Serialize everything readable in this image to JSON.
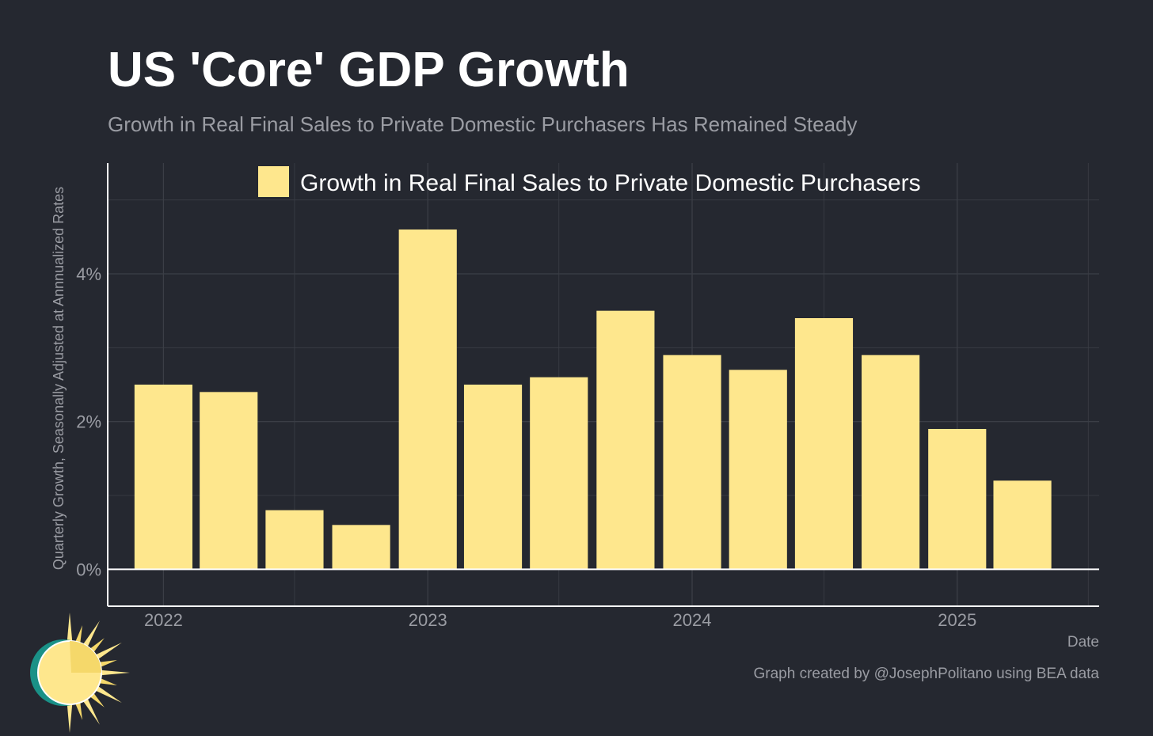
{
  "title": "US 'Core' GDP Growth",
  "subtitle": "Growth in Real Final Sales to Private Domestic Purchasers Has Remained Steady",
  "caption": "Graph created by @JosephPolitano using BEA data",
  "logo": {
    "icon": "sun-logo-icon"
  },
  "colors": {
    "background": "#252830",
    "bar": "#fee78d",
    "grid": "#3b3e46",
    "axis": "#ffffff",
    "muted_text": "#9a9ca3"
  },
  "chart_data": {
    "type": "bar",
    "title": "US 'Core' GDP Growth",
    "subtitle": "Growth in Real Final Sales to Private Domestic Purchasers Has Remained Steady",
    "xlabel": "Date",
    "ylabel": "Quarterly Growth, Seasonally Adjusted at Annnualized Rates",
    "legend_position": "top-center",
    "grid": true,
    "x": [
      "2022-01-01",
      "2022-04-01",
      "2022-07-01",
      "2022-10-01",
      "2023-01-01",
      "2023-04-01",
      "2023-07-01",
      "2023-10-01",
      "2024-01-01",
      "2024-04-01",
      "2024-07-01",
      "2024-10-01",
      "2025-01-01",
      "2025-04-01"
    ],
    "series": [
      {
        "name": "Growth in Real Final Sales to Private Domestic Purchasers",
        "values": [
          2.5,
          2.4,
          0.8,
          0.6,
          4.6,
          2.5,
          2.6,
          3.5,
          2.9,
          2.7,
          3.4,
          2.9,
          1.9,
          1.2
        ]
      }
    ],
    "ylim": [
      -0.5,
      5.5
    ],
    "xlim": [
      "2021-10-16",
      "2025-07-16"
    ],
    "yticks": [
      0,
      2,
      4
    ],
    "ytick_labels": [
      "0%",
      "2%",
      "4%"
    ],
    "xticks": [
      "2022-01-01",
      "2023-01-01",
      "2024-01-01",
      "2025-01-01"
    ],
    "xtick_labels": [
      "2022",
      "2023",
      "2024",
      "2025"
    ]
  }
}
